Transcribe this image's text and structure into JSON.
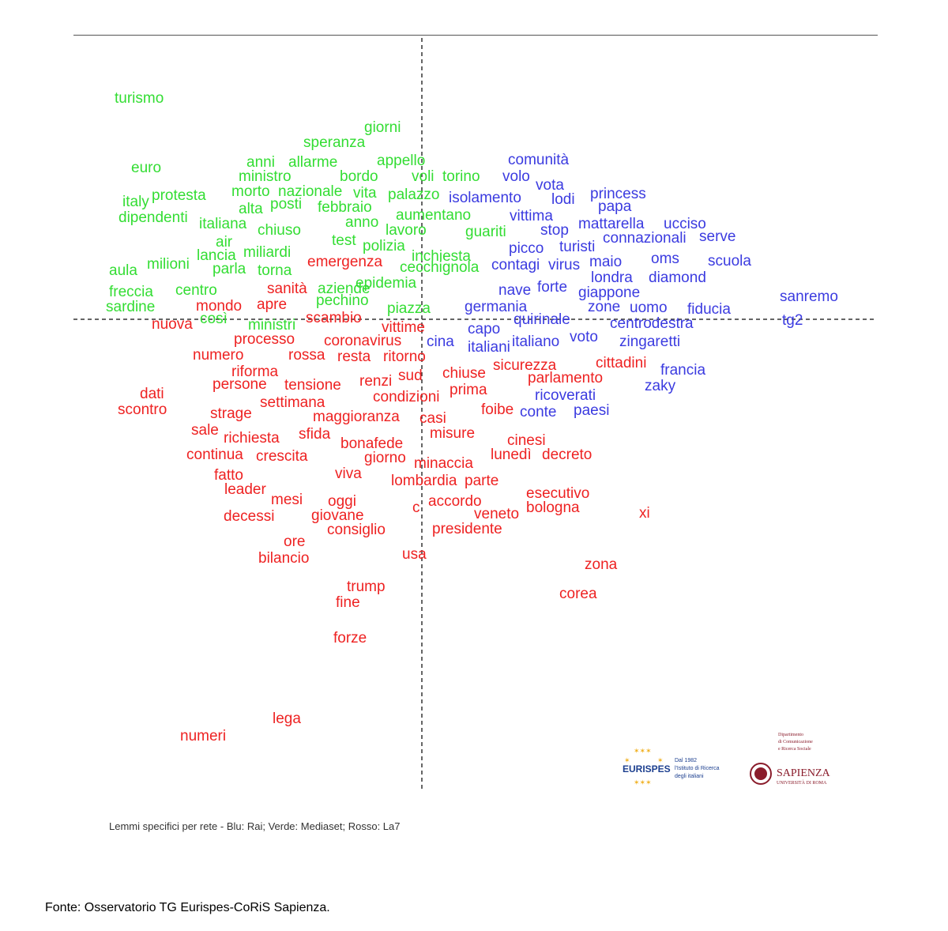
{
  "chart_data": {
    "type": "scatter",
    "title": "",
    "xlabel": "",
    "ylabel": "",
    "series": [
      {
        "name": "Blu: Rai",
        "color": "#3b3be0",
        "labels": [
          "comunità",
          "volo",
          "vota",
          "lodi",
          "princess",
          "isolamento",
          "papa",
          "vittima",
          "mattarella",
          "ucciso",
          "stop",
          "connazionali",
          "serve",
          "picco",
          "turisti",
          "maio",
          "oms",
          "scuola",
          "contagi",
          "virus",
          "londra",
          "diamond",
          "nave",
          "forte",
          "giappone",
          "sanremo",
          "germania",
          "zone",
          "uomo",
          "fiducia",
          "quirinale",
          "tg2",
          "centrodestra",
          "capo",
          "italiani",
          "italiano",
          "voto",
          "zingaretti",
          "cina",
          "francia",
          "zaky",
          "ricoverati",
          "conte",
          "paesi"
        ]
      },
      {
        "name": "Verde: Mediaset",
        "color": "#33dd33",
        "labels": [
          "turismo",
          "giorni",
          "speranza",
          "anni",
          "allarme",
          "appello",
          "euro",
          "ministro",
          "bordo",
          "voli",
          "torino",
          "italy",
          "protesta",
          "morto",
          "nazionale",
          "vita",
          "palazzo",
          "posti",
          "alta",
          "febbraio",
          "dipendenti",
          "aumentano",
          "italiana",
          "chiuso",
          "anno",
          "lavoro",
          "guariti",
          "air",
          "test",
          "polizia",
          "inchiesta",
          "miliardi",
          "lancia",
          "aula",
          "milioni",
          "parla",
          "torna",
          "cecchignola",
          "epidemia",
          "freccia",
          "centro",
          "aziende",
          "pechino",
          "sardine",
          "piazza",
          "così",
          "ministri"
        ]
      },
      {
        "name": "Rosso: La7",
        "color": "#ee2222",
        "labels": [
          "nuova",
          "mondo",
          "apre",
          "scambio",
          "vittime",
          "sanità",
          "emergenza",
          "processo",
          "coronavirus",
          "numero",
          "rossa",
          "resta",
          "ritorno",
          "riforma",
          "sud",
          "chiuse",
          "sicurezza",
          "cittadini",
          "persone",
          "tensione",
          "renzi",
          "parlamento",
          "dati",
          "condizioni",
          "prima",
          "scontro",
          "settimana",
          "strage",
          "maggioranza",
          "casi",
          "foibe",
          "sale",
          "richiesta",
          "sfida",
          "misure",
          "bonafede",
          "cinesi",
          "continua",
          "crescita",
          "giorno",
          "lunedì",
          "decreto",
          "minaccia",
          "fatto",
          "viva",
          "lombardia",
          "parte",
          "leader",
          "esecutivo",
          "mesi",
          "oggi",
          "accordo",
          "bologna",
          "xi",
          "decessi",
          "giovane",
          "veneto",
          "consiglio",
          "presidente",
          "ore",
          "c",
          "usa",
          "bilancio",
          "zona",
          "trump",
          "fine",
          "corea",
          "forze",
          "lega",
          "numeri"
        ]
      }
    ],
    "grid": false,
    "legend": "caption-bottom"
  },
  "caption": "Lemmi specifici per rete - Blu: Rai; Verde: Mediaset; Rosso: La7",
  "source": "Fonte: Osservatorio TG Eurispes-CoRiS Sapienza.",
  "logos": {
    "eurispes": {
      "name": "EURISPES",
      "line1": "Dal 1982",
      "line2": "l'Istituto di Ricerca",
      "line3": "degli italiani"
    },
    "sapienza": {
      "dept1": "Dipartimento",
      "dept2": "di Comunicazione",
      "dept3": "e Ricerca Sociale",
      "name": "Sapienza",
      "sub": "Università di Roma"
    }
  }
}
